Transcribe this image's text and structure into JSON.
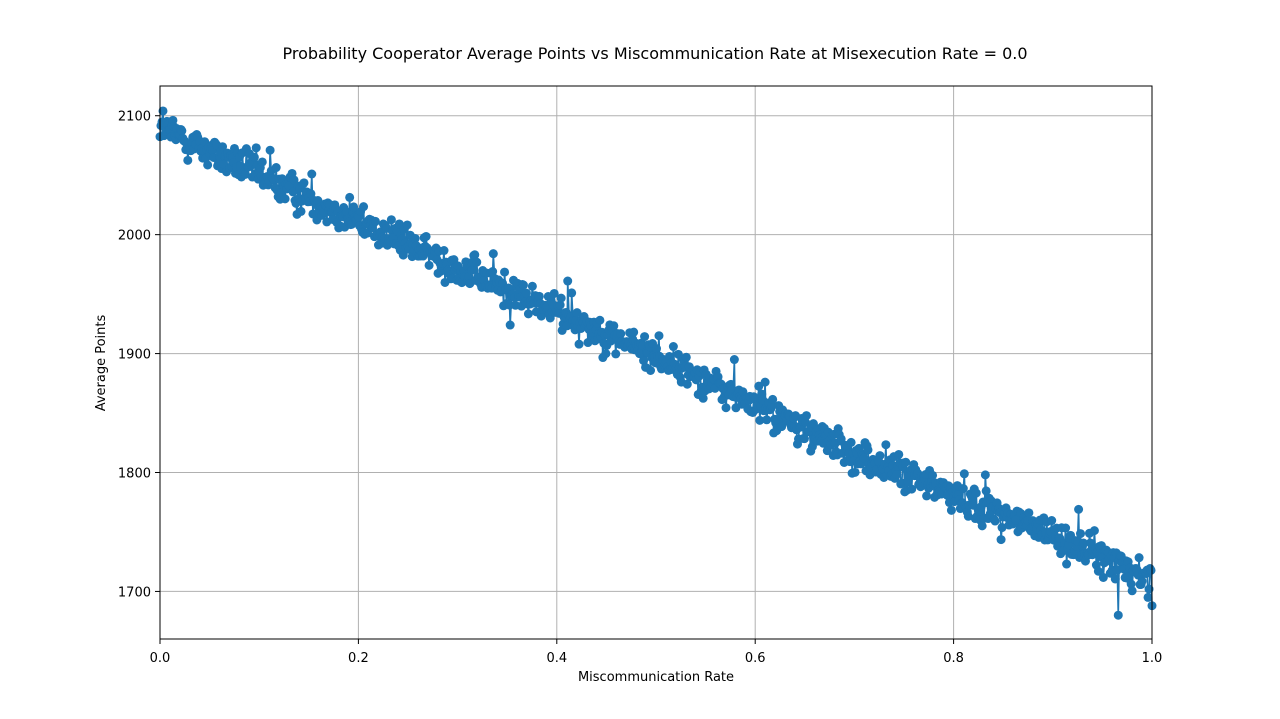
{
  "chart_data": {
    "type": "line",
    "title": "Probability Cooperator Average Points vs Miscommunication Rate at Misexecution Rate = 0.0",
    "xlabel": "Miscommunication Rate",
    "ylabel": "Average Points",
    "xlim": [
      0.0,
      1.0
    ],
    "ylim": [
      1660,
      2125
    ],
    "x_ticks": [
      "0.0",
      "0.2",
      "0.4",
      "0.6",
      "0.8",
      "1.0"
    ],
    "y_ticks": [
      "1700",
      "1800",
      "1900",
      "2000",
      "2100"
    ],
    "grid": true,
    "marker": "circle",
    "series_color": "#1f77b4",
    "trend": {
      "x": [
        0.0,
        0.1,
        0.2,
        0.3,
        0.4,
        0.5,
        0.6,
        0.7,
        0.8,
        0.9,
        1.0
      ],
      "y": [
        2090,
        2050,
        2012,
        1972,
        1935,
        1898,
        1857,
        1815,
        1782,
        1747,
        1710
      ]
    },
    "outliers": [
      {
        "x": 0.003,
        "y": 2104
      },
      {
        "x": 0.097,
        "y": 2073
      },
      {
        "x": 0.111,
        "y": 2071
      },
      {
        "x": 0.153,
        "y": 2051
      },
      {
        "x": 0.336,
        "y": 1984
      },
      {
        "x": 0.353,
        "y": 1924
      },
      {
        "x": 0.411,
        "y": 1961
      },
      {
        "x": 0.415,
        "y": 1951
      },
      {
        "x": 0.503,
        "y": 1915
      },
      {
        "x": 0.579,
        "y": 1895
      },
      {
        "x": 0.61,
        "y": 1876
      },
      {
        "x": 0.656,
        "y": 1818
      },
      {
        "x": 0.832,
        "y": 1798
      },
      {
        "x": 0.926,
        "y": 1769
      },
      {
        "x": 0.966,
        "y": 1680
      },
      {
        "x": 1.0,
        "y": 1688
      }
    ],
    "n_points": 1000,
    "noise_amplitude": 10
  }
}
